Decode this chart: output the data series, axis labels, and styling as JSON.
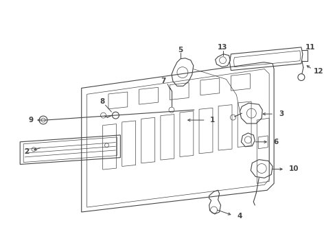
{
  "bg_color": "#ffffff",
  "line_color": "#444444",
  "fig_width": 4.89,
  "fig_height": 3.6,
  "dpi": 100,
  "lw_main": 0.8,
  "lw_thin": 0.5,
  "label_fs": 7.5
}
